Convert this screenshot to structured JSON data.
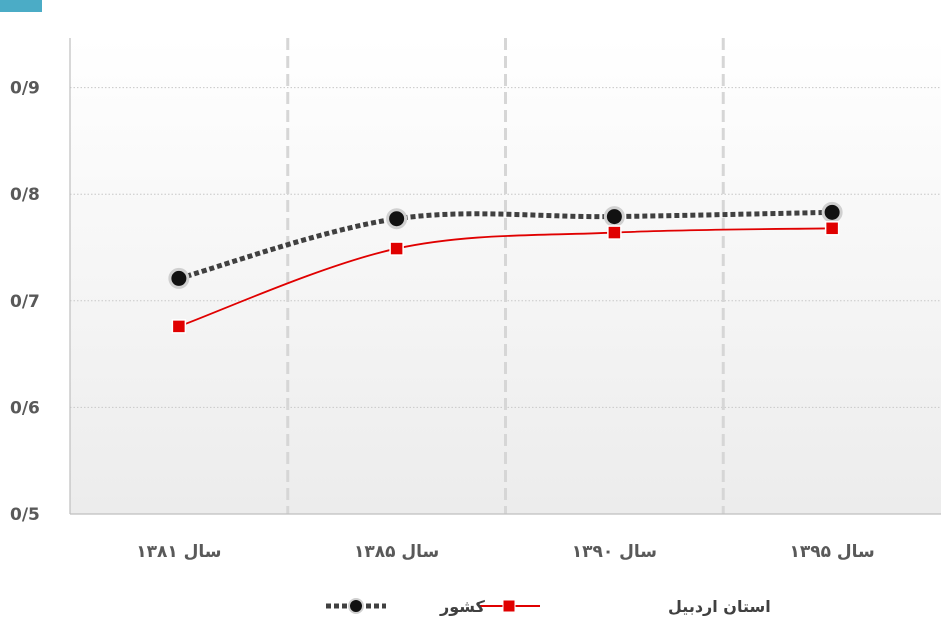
{
  "chart_data": {
    "type": "line",
    "categories": [
      "سال ۱۳۸۱",
      "سال ۱۳۸۵",
      "سال ۱۳۹۰",
      "سال ۱۳۹۵"
    ],
    "series": [
      {
        "name": "کشور",
        "values": [
          0.721,
          0.777,
          0.779,
          0.783
        ],
        "color": "#404040",
        "style": "dotted",
        "marker": "circle"
      },
      {
        "name": "استان اردبیل",
        "values": [
          0.676,
          0.749,
          0.764,
          0.768
        ],
        "color": "#e00000",
        "style": "solid",
        "marker": "square"
      }
    ],
    "y_ticks": [
      "0/5",
      "0/6",
      "0/7",
      "0/8",
      "0/9"
    ],
    "ylim": [
      0.5,
      0.95
    ],
    "grid": true,
    "legend_position": "bottom",
    "colors": {
      "accent_tab": "#4bacc6",
      "plot_background_bottom": "#ececec"
    }
  }
}
